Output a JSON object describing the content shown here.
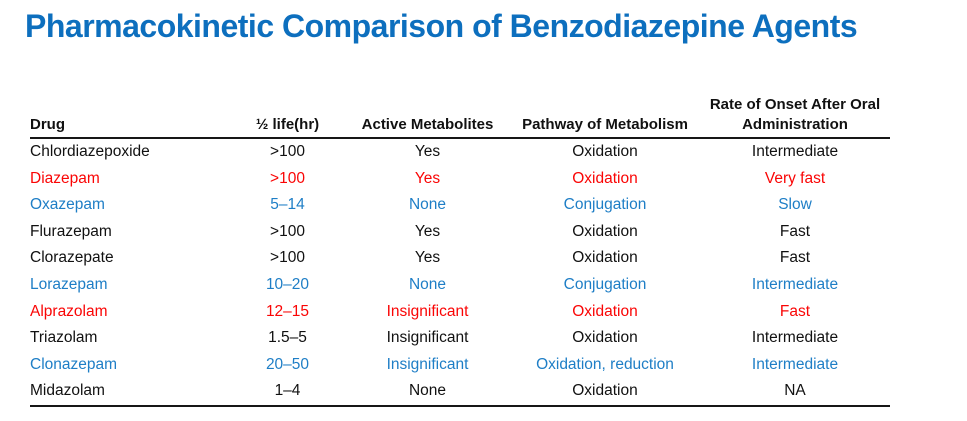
{
  "title": "Pharmacokinetic Comparison of Benzodiazepine Agents",
  "colors": {
    "title": "#0d6fbe",
    "red": "#fa0505",
    "blue": "#1e7ec6",
    "black": "#111111"
  },
  "table": {
    "columns": [
      {
        "label": "Drug",
        "align": "left"
      },
      {
        "label": "½ life(hr)",
        "align": "center"
      },
      {
        "label": "Active Metabolites",
        "align": "center"
      },
      {
        "label": "Pathway of Metabolism",
        "align": "center"
      },
      {
        "label": "Rate of Onset After Oral Administration",
        "align": "center"
      }
    ],
    "rows": [
      {
        "color": "black",
        "cells": [
          "Chlordiazepoxide",
          ">100",
          "Yes",
          "Oxidation",
          "Intermediate"
        ]
      },
      {
        "color": "red",
        "cells": [
          "Diazepam",
          ">100",
          "Yes",
          "Oxidation",
          "Very fast"
        ]
      },
      {
        "color": "blue",
        "cells": [
          "Oxazepam",
          "5–14",
          "None",
          "Conjugation",
          "Slow"
        ]
      },
      {
        "color": "black",
        "cells": [
          "Flurazepam",
          ">100",
          "Yes",
          "Oxidation",
          "Fast"
        ]
      },
      {
        "color": "black",
        "cells": [
          "Clorazepate",
          ">100",
          "Yes",
          "Oxidation",
          "Fast"
        ]
      },
      {
        "color": "blue",
        "cells": [
          "Lorazepam",
          "10–20",
          "None",
          "Conjugation",
          "Intermediate"
        ]
      },
      {
        "color": "red",
        "cells": [
          "Alprazolam",
          "12–15",
          "Insignificant",
          "Oxidation",
          "Fast"
        ]
      },
      {
        "color": "black",
        "cells": [
          "Triazolam",
          "1.5–5",
          "Insignificant",
          "Oxidation",
          "Intermediate"
        ]
      },
      {
        "color": "blue",
        "cells": [
          "Clonazepam",
          "20–50",
          "Insignificant",
          "Oxidation, reduction",
          "Intermediate"
        ]
      },
      {
        "color": "black",
        "cells": [
          "Midazolam",
          "1–4",
          "None",
          "Oxidation",
          "NA"
        ]
      }
    ]
  }
}
